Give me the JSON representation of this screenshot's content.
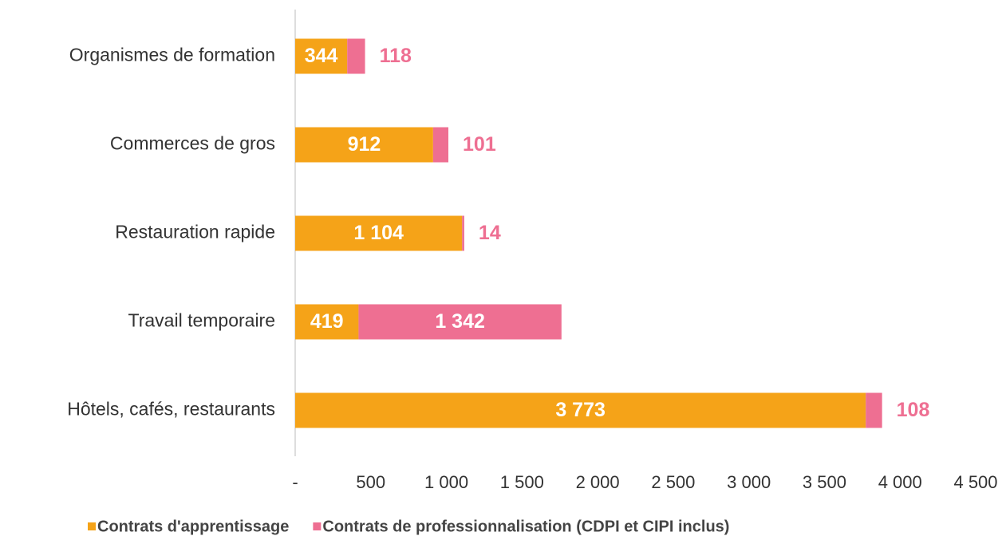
{
  "chart_data": {
    "type": "stacked-barh",
    "categories": [
      "Organismes de formation",
      "Commerces de gros",
      "Restauration rapide",
      "Travail temporaire",
      "Hôtels, cafés, restaurants"
    ],
    "series": [
      {
        "name": "Contrats d'apprentissage",
        "color": "#f5a318",
        "values": [
          344,
          912,
          1104,
          419,
          3773
        ],
        "value_labels": [
          "344",
          "912",
          "1 104",
          "419",
          "3 773"
        ]
      },
      {
        "name": "Contrats de professionnalisation (CDPI et CIPI inclus)",
        "color": "#ee6f92",
        "values": [
          118,
          101,
          14,
          1342,
          108
        ],
        "value_labels": [
          "118",
          "101",
          "14",
          "1 342",
          "108"
        ]
      }
    ],
    "xlim": [
      0,
      4500
    ],
    "xticks": [
      {
        "value": 0,
        "label": "-"
      },
      500,
      {
        "value": 1000,
        "label": "1 000"
      },
      {
        "value": 1500,
        "label": "1 500"
      },
      {
        "value": 2000,
        "label": "2 000"
      },
      {
        "value": 2500,
        "label": "2 500"
      },
      {
        "value": 3000,
        "label": "3 000"
      },
      {
        "value": 3500,
        "label": "3 500"
      },
      {
        "value": 4000,
        "label": "4 000"
      },
      {
        "value": 4500,
        "label": "4 500"
      }
    ],
    "legend": "bottom"
  }
}
